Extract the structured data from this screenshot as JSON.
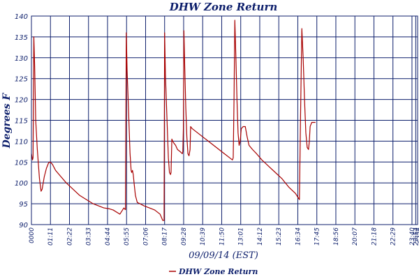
{
  "chart_data": {
    "type": "line",
    "title": "DHW Zone Return",
    "xlabel": "09/09/14 (EST)",
    "ylabel": "Degrees F",
    "ylim": [
      90,
      140
    ],
    "yticks": [
      90,
      95,
      100,
      105,
      110,
      115,
      120,
      125,
      130,
      135,
      140
    ],
    "xlim": [
      0,
      1441
    ],
    "xtick_minutes": [
      0,
      71,
      142,
      213,
      284,
      355,
      426,
      497,
      568,
      639,
      710,
      781,
      852,
      923,
      994,
      1065,
      1136,
      1207,
      1278,
      1349,
      1420,
      1434,
      1441
    ],
    "xtick_labels": [
      "0000",
      "01:11",
      "02:22",
      "03:33",
      "04:44",
      "05:55",
      "07:06",
      "08:17",
      "09:28",
      "10:39",
      "11:50",
      "13:01",
      "14:12",
      "15:23",
      "16:34",
      "17:45",
      "18:56",
      "20:07",
      "21:18",
      "22:29",
      "23:40",
      "23:54",
      "2354"
    ],
    "grid": true,
    "legend_position": "bottom",
    "colors": {
      "line": "#a80000",
      "grid": "#0c1e6b",
      "axis": "#0c1e6b",
      "text": "#0c1e6b"
    },
    "series": [
      {
        "name": "DHW Zone Return",
        "points": [
          [
            0,
            107.0
          ],
          [
            4,
            105.5
          ],
          [
            6,
            106
          ],
          [
            9,
            135
          ],
          [
            12,
            128
          ],
          [
            16,
            115
          ],
          [
            22,
            108
          ],
          [
            30,
            101
          ],
          [
            36,
            98
          ],
          [
            40,
            98.5
          ],
          [
            48,
            101.5
          ],
          [
            56,
            103.5
          ],
          [
            64,
            104.8
          ],
          [
            70,
            105
          ],
          [
            78,
            104.5
          ],
          [
            90,
            103
          ],
          [
            110,
            101.5
          ],
          [
            130,
            100
          ],
          [
            155,
            98.5
          ],
          [
            180,
            97
          ],
          [
            205,
            96
          ],
          [
            230,
            95
          ],
          [
            250,
            94.5
          ],
          [
            270,
            94
          ],
          [
            290,
            93.8
          ],
          [
            305,
            93.5
          ],
          [
            330,
            92.5
          ],
          [
            345,
            94
          ],
          [
            350,
            93.6
          ],
          [
            351,
            93.6
          ],
          [
            354,
            136
          ],
          [
            357,
            127
          ],
          [
            362,
            118
          ],
          [
            368,
            107
          ],
          [
            372,
            103
          ],
          [
            374,
            102.5
          ],
          [
            377,
            103
          ],
          [
            380,
            102
          ],
          [
            383,
            100
          ],
          [
            388,
            97
          ],
          [
            395,
            95.3
          ],
          [
            405,
            95
          ],
          [
            420,
            94.5
          ],
          [
            440,
            94
          ],
          [
            460,
            93.5
          ],
          [
            480,
            92.5
          ],
          [
            490,
            91
          ],
          [
            494,
            91
          ],
          [
            495,
            91
          ],
          [
            497,
            136
          ],
          [
            500,
            126
          ],
          [
            506,
            115
          ],
          [
            511,
            106
          ],
          [
            515,
            102.5
          ],
          [
            519,
            102
          ],
          [
            521,
            102.5
          ],
          [
            524,
            110.5
          ],
          [
            527,
            110
          ],
          [
            532,
            109.5
          ],
          [
            538,
            109
          ],
          [
            545,
            108
          ],
          [
            555,
            107.5
          ],
          [
            563,
            107
          ],
          [
            565,
            107.5
          ],
          [
            567,
            113
          ],
          [
            569,
            136.5
          ],
          [
            572,
            128
          ],
          [
            576,
            118
          ],
          [
            580,
            111
          ],
          [
            584,
            107
          ],
          [
            588,
            106.5
          ],
          [
            592,
            108
          ],
          [
            594,
            113.5
          ],
          [
            600,
            113
          ],
          [
            620,
            112
          ],
          [
            640,
            111
          ],
          [
            660,
            110
          ],
          [
            680,
            109
          ],
          [
            700,
            108
          ],
          [
            720,
            107
          ],
          [
            740,
            106
          ],
          [
            750,
            105.5
          ],
          [
            753,
            106
          ],
          [
            756,
            120
          ],
          [
            759,
            139
          ],
          [
            763,
            130
          ],
          [
            767,
            120
          ],
          [
            771,
            112
          ],
          [
            775,
            109
          ],
          [
            779,
            110
          ],
          [
            783,
            113
          ],
          [
            790,
            113.5
          ],
          [
            798,
            113.5
          ],
          [
            805,
            111
          ],
          [
            812,
            109
          ],
          [
            825,
            108
          ],
          [
            840,
            107
          ],
          [
            860,
            105.5
          ],
          [
            885,
            104
          ],
          [
            910,
            102.5
          ],
          [
            935,
            101
          ],
          [
            960,
            99
          ],
          [
            985,
            97.5
          ],
          [
            995,
            96.5
          ],
          [
            1000,
            96
          ],
          [
            1004,
            115
          ],
          [
            1009,
            137
          ],
          [
            1014,
            130
          ],
          [
            1019,
            120
          ],
          [
            1024,
            112
          ],
          [
            1029,
            108.5
          ],
          [
            1034,
            108
          ],
          [
            1037,
            110
          ],
          [
            1040,
            113.5
          ],
          [
            1046,
            114.5
          ],
          [
            1060,
            114.5
          ]
        ]
      }
    ]
  },
  "legend": {
    "label": "DHW Zone Return"
  }
}
